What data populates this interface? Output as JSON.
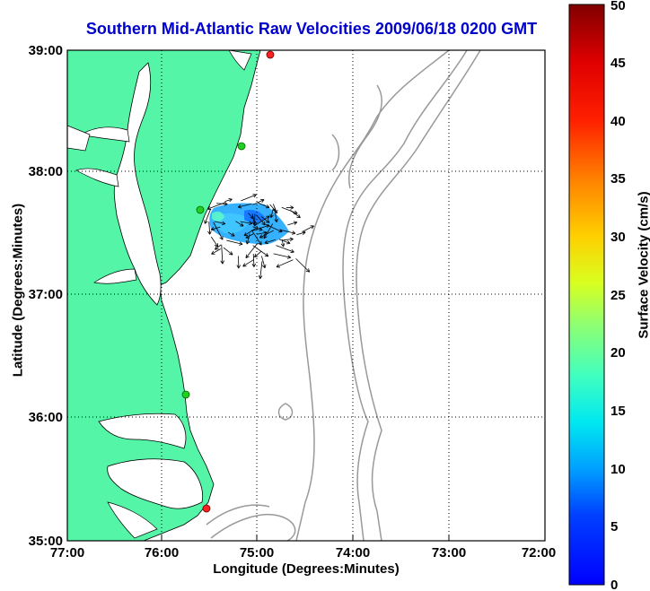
{
  "title": "Southern Mid-Atlantic Raw Velocities 2009/06/18 0200 GMT",
  "xlabel": "Longitude (Degrees:Minutes)",
  "ylabel": "Latitude (Degrees:Minutes)",
  "xticks": [
    "77:00",
    "76:00",
    "75:00",
    "74:00",
    "73:00",
    "72:00"
  ],
  "yticks": [
    "39:00",
    "38:00",
    "37:00",
    "36:00",
    "35:00"
  ],
  "colorbar": {
    "label": "Surface Velocity (cm/s)",
    "ticks": [
      "0",
      "5",
      "10",
      "15",
      "20",
      "25",
      "30",
      "35",
      "40",
      "45",
      "50"
    ],
    "range": [
      0,
      50
    ]
  },
  "colors": {
    "title": "#0000cc",
    "land": "#55f5a8",
    "coast": "#000000",
    "bathymetry": "#999999",
    "grid": "#000000"
  },
  "stations": [
    {
      "lon": -74.78,
      "lat": 38.96,
      "color": "#ff2020"
    },
    {
      "lon": -75.15,
      "lat": 38.22,
      "color": "#20d020"
    },
    {
      "lon": -75.62,
      "lat": 37.65,
      "color": "#20d020"
    },
    {
      "lon": -75.72,
      "lat": 36.18,
      "color": "#20d020"
    },
    {
      "lon": -75.52,
      "lat": 35.25,
      "color": "#ff2020"
    }
  ]
}
